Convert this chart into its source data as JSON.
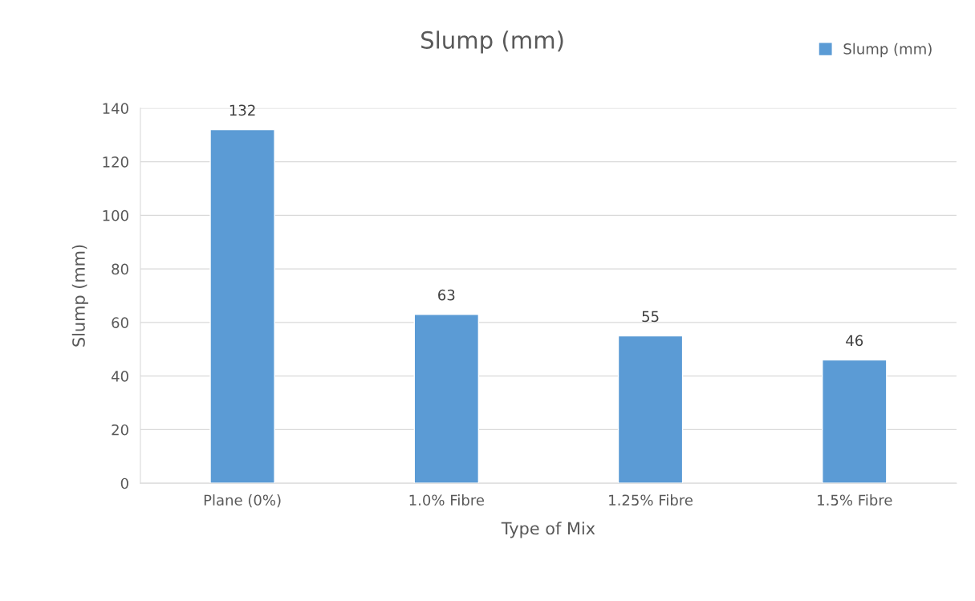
{
  "chart_data": {
    "type": "bar",
    "title": "Slump (mm)",
    "xlabel": "Type of Mix",
    "ylabel": "Slump (mm)",
    "categories": [
      "Plane (0%)",
      "1.0% Fibre",
      "1.25% Fibre",
      "1.5% Fibre"
    ],
    "series": [
      {
        "name": "Slump (mm)",
        "color": "#5b9bd5",
        "values": [
          132,
          63,
          55,
          46
        ]
      }
    ],
    "ylim": [
      0,
      140
    ],
    "yticks": [
      0,
      20,
      40,
      60,
      80,
      100,
      120,
      140
    ],
    "grid": "y",
    "legend": "top right",
    "data_labels": true
  }
}
